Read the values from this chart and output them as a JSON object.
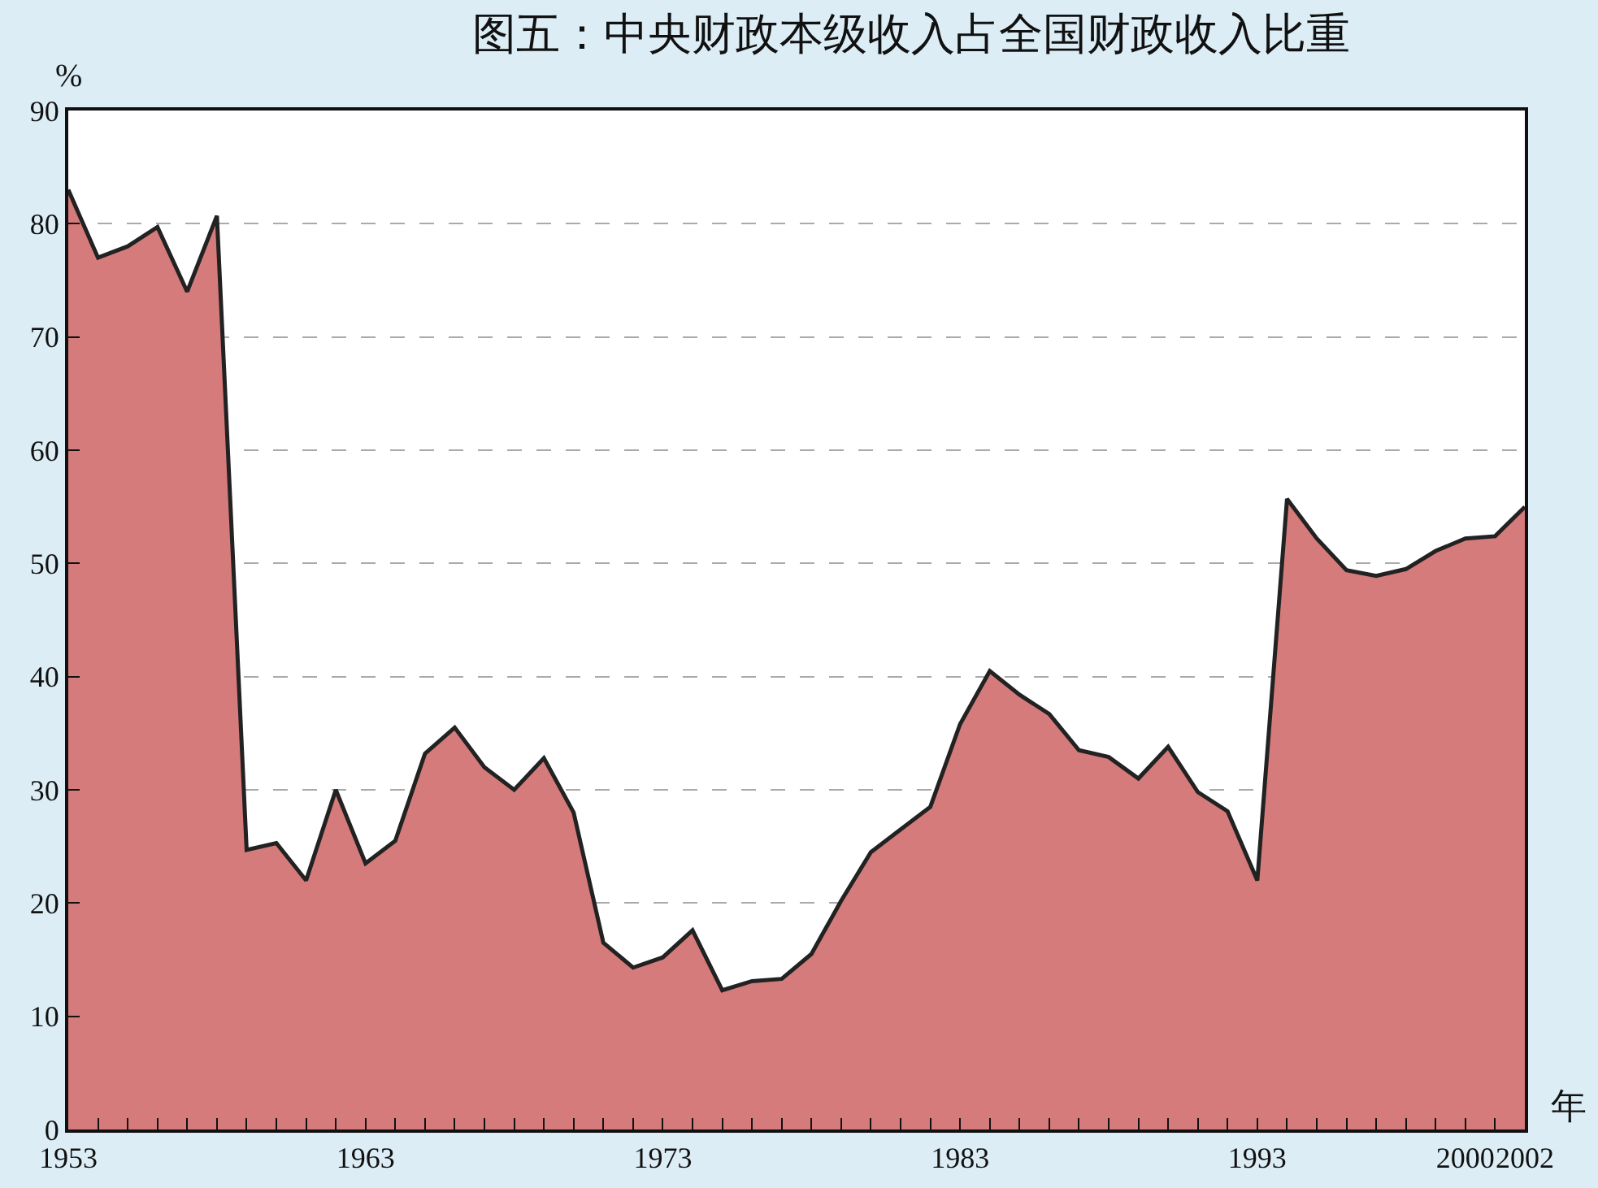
{
  "chart_data": {
    "type": "area",
    "title": "图五：中央财政本级收入占全国财政收入比重",
    "xlabel": "年",
    "ylabel": "%",
    "x": [
      1953,
      1954,
      1955,
      1956,
      1957,
      1958,
      1959,
      1960,
      1961,
      1962,
      1963,
      1964,
      1965,
      1966,
      1967,
      1968,
      1969,
      1970,
      1971,
      1972,
      1973,
      1974,
      1975,
      1976,
      1977,
      1978,
      1979,
      1980,
      1981,
      1982,
      1983,
      1984,
      1985,
      1986,
      1987,
      1988,
      1989,
      1990,
      1991,
      1992,
      1993,
      1994,
      1995,
      1996,
      1997,
      1998,
      1999,
      2000,
      2001,
      2002
    ],
    "series": [
      {
        "color": "#d57b7b",
        "values": [
          83,
          77,
          78,
          79.7,
          74,
          80.7,
          24.7,
          25.3,
          22,
          30,
          23.5,
          25.5,
          33.2,
          35.5,
          32,
          30,
          32.8,
          28,
          16.5,
          14.3,
          15.2,
          17.6,
          12.3,
          13.1,
          13.3,
          15.5,
          20.2,
          24.5,
          26.5,
          28.5,
          35.8,
          40.5,
          38.4,
          36.7,
          33.5,
          32.9,
          31,
          33.8,
          29.8,
          28.1,
          22,
          55.7,
          52.2,
          49.4,
          48.9,
          49.5,
          51.1,
          52.2,
          52.4,
          55
        ]
      }
    ],
    "xlim": [
      1953,
      2002
    ],
    "xticks": [
      1953,
      {
        "value": 1954,
        "label": null
      },
      {
        "value": 1955,
        "label": null
      },
      {
        "value": 1956,
        "label": null
      },
      {
        "value": 1957,
        "label": null
      },
      {
        "value": 1958,
        "label": null
      },
      {
        "value": 1959,
        "label": null
      },
      {
        "value": 1960,
        "label": null
      },
      {
        "value": 1961,
        "label": null
      },
      {
        "value": 1962,
        "label": null
      },
      1963,
      {
        "value": 1964,
        "label": null
      },
      {
        "value": 1965,
        "label": null
      },
      {
        "value": 1966,
        "label": null
      },
      {
        "value": 1967,
        "label": null
      },
      {
        "value": 1968,
        "label": null
      },
      {
        "value": 1969,
        "label": null
      },
      {
        "value": 1970,
        "label": null
      },
      {
        "value": 1971,
        "label": null
      },
      {
        "value": 1972,
        "label": null
      },
      1973,
      {
        "value": 1974,
        "label": null
      },
      {
        "value": 1975,
        "label": null
      },
      {
        "value": 1976,
        "label": null
      },
      {
        "value": 1977,
        "label": null
      },
      {
        "value": 1978,
        "label": null
      },
      {
        "value": 1979,
        "label": null
      },
      {
        "value": 1980,
        "label": null
      },
      {
        "value": 1981,
        "label": null
      },
      {
        "value": 1982,
        "label": null
      },
      1983,
      {
        "value": 1984,
        "label": null
      },
      {
        "value": 1985,
        "label": null
      },
      {
        "value": 1986,
        "label": null
      },
      {
        "value": 1987,
        "label": null
      },
      {
        "value": 1988,
        "label": null
      },
      {
        "value": 1989,
        "label": null
      },
      {
        "value": 1990,
        "label": null
      },
      {
        "value": 1991,
        "label": null
      },
      {
        "value": 1992,
        "label": null
      },
      1993,
      {
        "value": 1994,
        "label": null
      },
      {
        "value": 1995,
        "label": null
      },
      {
        "value": 1996,
        "label": null
      },
      {
        "value": 1997,
        "label": null
      },
      {
        "value": 1998,
        "label": null
      },
      {
        "value": 1999,
        "label": null
      },
      2000,
      {
        "value": 2001,
        "label": null
      },
      2002
    ],
    "ylim": [
      0,
      90
    ],
    "yticks": [
      0,
      10,
      20,
      30,
      40,
      50,
      60,
      70,
      80,
      90
    ],
    "grid": "y"
  }
}
